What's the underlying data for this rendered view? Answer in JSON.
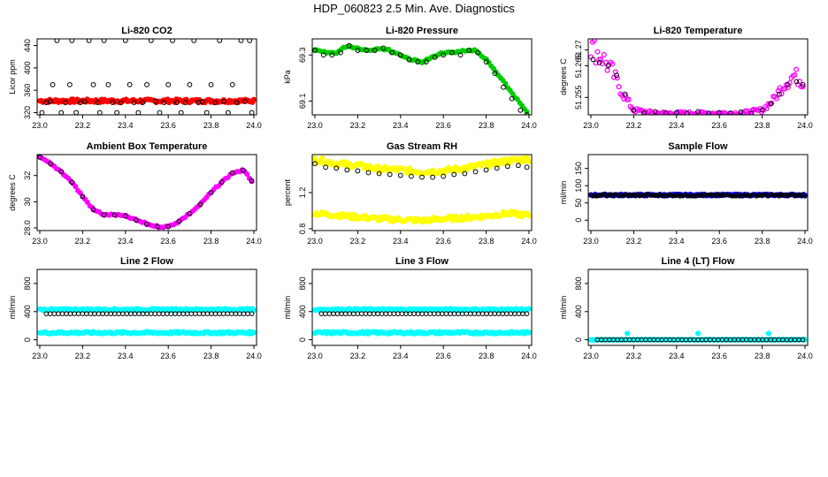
{
  "page": {
    "title": "HDP_060823  2.5 Min. Ave. Diagnostics"
  },
  "colors": {
    "black": "#000000",
    "red": "#ff0000",
    "green": "#00cc00",
    "magenta": "#ff00ff",
    "yellow": "#ffff00",
    "blue": "#0000ff",
    "cyan": "#00ffff"
  },
  "chart_data": [
    {
      "id": "co2",
      "type": "scatter",
      "title": "Li-820 CO2",
      "xlabel": "",
      "ylabel": "Licor ppm",
      "xlim": [
        23.0,
        24.0
      ],
      "ylim": [
        316,
        452
      ],
      "xticks": [
        23.0,
        23.2,
        23.4,
        23.6,
        23.8,
        24.0
      ],
      "yticks": [
        320,
        360,
        400,
        440
      ],
      "series": [
        {
          "color": "red",
          "style": "band",
          "x": [
            23.0,
            24.0
          ],
          "y": [
            341,
            341
          ],
          "spread": 3
        },
        {
          "color": "black",
          "style": "open",
          "x": [
            23.01,
            23.03,
            23.05,
            23.06,
            23.08,
            23.1,
            23.12,
            23.14,
            23.15,
            23.17,
            23.19,
            23.21,
            23.23,
            23.25,
            23.27,
            23.28,
            23.3,
            23.32,
            23.34,
            23.36,
            23.38,
            23.4,
            23.42,
            23.44,
            23.46,
            23.48,
            23.5,
            23.52,
            23.54,
            23.56,
            23.58,
            23.6,
            23.62,
            23.64,
            23.66,
            23.68,
            23.7,
            23.72,
            23.74,
            23.76,
            23.78,
            23.8,
            23.82,
            23.84,
            23.86,
            23.88,
            23.9,
            23.92,
            23.94,
            23.96,
            23.98,
            23.99
          ],
          "y": [
            320,
            338,
            340,
            370,
            449,
            320,
            338,
            370,
            449,
            320,
            338,
            340,
            449,
            370,
            338,
            320,
            449,
            370,
            338,
            320,
            338,
            449,
            370,
            338,
            320,
            338,
            370,
            449,
            340,
            320,
            338,
            370,
            449,
            338,
            320,
            338,
            370,
            449,
            338,
            340,
            320,
            370,
            338,
            449,
            340,
            320,
            370,
            338,
            449,
            340,
            449,
            320
          ]
        }
      ]
    },
    {
      "id": "pressure",
      "type": "scatter",
      "title": "Li-820 Pressure",
      "xlabel": "",
      "ylabel": "kPa",
      "xlim": [
        23.0,
        24.0
      ],
      "ylim": [
        69.04,
        69.37
      ],
      "xticks": [
        23.0,
        23.2,
        23.4,
        23.6,
        23.8,
        24.0
      ],
      "yticks": [
        69.1,
        69.3
      ],
      "series": [
        {
          "color": "green",
          "style": "line-dense",
          "x": [
            23.0,
            23.05,
            23.1,
            23.15,
            23.2,
            23.25,
            23.3,
            23.35,
            23.4,
            23.45,
            23.5,
            23.55,
            23.6,
            23.65,
            23.7,
            23.75,
            23.8,
            23.85,
            23.9,
            23.95,
            23.99
          ],
          "y": [
            69.32,
            69.31,
            69.31,
            69.34,
            69.33,
            69.32,
            69.33,
            69.32,
            69.3,
            69.28,
            69.27,
            69.29,
            69.31,
            69.31,
            69.32,
            69.32,
            69.28,
            69.22,
            69.16,
            69.1,
            69.05
          ]
        },
        {
          "color": "black",
          "style": "open",
          "x": [
            23.0,
            23.04,
            23.08,
            23.12,
            23.16,
            23.2,
            23.24,
            23.28,
            23.32,
            23.36,
            23.4,
            23.44,
            23.48,
            23.52,
            23.56,
            23.6,
            23.64,
            23.68,
            23.72,
            23.76,
            23.8,
            23.84,
            23.88,
            23.92,
            23.96,
            23.99
          ],
          "y": [
            69.32,
            69.3,
            69.3,
            69.31,
            69.34,
            69.32,
            69.32,
            69.32,
            69.33,
            69.31,
            69.3,
            69.28,
            69.27,
            69.27,
            69.29,
            69.3,
            69.31,
            69.3,
            69.32,
            69.31,
            69.27,
            69.22,
            69.16,
            69.11,
            69.06,
            69.04
          ]
        }
      ]
    },
    {
      "id": "temp",
      "type": "scatter",
      "title": "Li-820 Temperature",
      "xlabel": "",
      "ylabel": "degrees C",
      "xlim": [
        23.0,
        24.0
      ],
      "ylim": [
        51.2495,
        51.2735
      ],
      "xticks": [
        23.0,
        23.2,
        23.4,
        23.6,
        23.8,
        24.0
      ],
      "yticks": [
        51.255,
        51.265,
        51.27
      ],
      "series": [
        {
          "color": "magenta",
          "style": "noisy",
          "x": [
            23.0,
            23.05,
            23.1,
            23.15,
            23.2,
            23.3,
            23.4,
            23.5,
            23.6,
            23.7,
            23.8,
            23.85,
            23.9,
            23.95,
            23.99
          ],
          "y": [
            51.271,
            51.268,
            51.263,
            51.256,
            51.251,
            51.25,
            51.25,
            51.25,
            51.25,
            51.25,
            51.251,
            51.254,
            51.259,
            51.262,
            51.26
          ]
        },
        {
          "color": "black",
          "style": "open",
          "x": [
            23.01,
            23.04,
            23.08,
            23.12,
            23.16,
            23.2,
            23.25,
            23.3,
            23.35,
            23.4,
            23.45,
            23.5,
            23.55,
            23.6,
            23.65,
            23.7,
            23.75,
            23.8,
            23.84,
            23.88,
            23.92,
            23.96,
            23.99
          ],
          "y": [
            51.267,
            51.266,
            51.265,
            51.262,
            51.256,
            51.251,
            51.25,
            51.2505,
            51.25,
            51.2502,
            51.25,
            51.2505,
            51.25,
            51.2502,
            51.25,
            51.2504,
            51.25,
            51.251,
            51.253,
            51.256,
            51.259,
            51.26,
            51.259
          ]
        }
      ]
    },
    {
      "id": "ambient",
      "type": "scatter",
      "title": "Ambient Box Temperature",
      "xlabel": "",
      "ylabel": "degrees C",
      "xlim": [
        23.0,
        24.0
      ],
      "ylim": [
        27.8,
        33.6
      ],
      "xticks": [
        23.0,
        23.2,
        23.4,
        23.6,
        23.8,
        24.0
      ],
      "yticks": [
        28,
        30,
        32
      ],
      "series": [
        {
          "color": "magenta",
          "style": "line-dense",
          "x": [
            23.0,
            23.05,
            23.1,
            23.15,
            23.2,
            23.25,
            23.3,
            23.35,
            23.4,
            23.45,
            23.5,
            23.55,
            23.6,
            23.65,
            23.7,
            23.75,
            23.8,
            23.85,
            23.9,
            23.95,
            23.99
          ],
          "y": [
            33.4,
            32.9,
            32.3,
            31.5,
            30.4,
            29.4,
            29.0,
            29.0,
            28.9,
            28.6,
            28.3,
            28.1,
            28.1,
            28.5,
            29.1,
            29.8,
            30.7,
            31.5,
            32.2,
            32.4,
            31.6
          ]
        },
        {
          "color": "black",
          "style": "open",
          "x": [
            23.0,
            23.05,
            23.1,
            23.15,
            23.2,
            23.25,
            23.3,
            23.35,
            23.4,
            23.45,
            23.5,
            23.55,
            23.6,
            23.65,
            23.7,
            23.75,
            23.8,
            23.85,
            23.9,
            23.95,
            23.99
          ],
          "y": [
            33.4,
            32.9,
            32.3,
            31.5,
            30.4,
            29.4,
            29.0,
            29.0,
            28.9,
            28.6,
            28.3,
            28.1,
            28.1,
            28.5,
            29.1,
            29.8,
            30.7,
            31.5,
            32.2,
            32.4,
            31.6
          ]
        }
      ]
    },
    {
      "id": "rh",
      "type": "scatter",
      "title": "Gas Stream RH",
      "xlabel": "",
      "ylabel": "percent",
      "xlim": [
        23.0,
        24.0
      ],
      "ylim": [
        0.78,
        1.62
      ],
      "xticks": [
        23.0,
        23.2,
        23.4,
        23.6,
        23.8,
        24.0
      ],
      "yticks": [
        0.8,
        1.2
      ],
      "series": [
        {
          "color": "yellow",
          "style": "band",
          "x": [
            23.0,
            23.1,
            23.2,
            23.3,
            23.4,
            23.5,
            23.6,
            23.7,
            23.8,
            23.9,
            23.99
          ],
          "y": [
            1.57,
            1.52,
            1.5,
            1.46,
            1.45,
            1.43,
            1.44,
            1.47,
            1.51,
            1.55,
            1.57
          ],
          "spread": 0.03
        },
        {
          "color": "yellow",
          "style": "band",
          "x": [
            23.0,
            23.1,
            23.2,
            23.3,
            23.4,
            23.5,
            23.6,
            23.7,
            23.8,
            23.9,
            23.99
          ],
          "y": [
            0.97,
            0.95,
            0.93,
            0.91,
            0.9,
            0.89,
            0.91,
            0.92,
            0.94,
            0.97,
            0.95
          ],
          "spread": 0.025
        },
        {
          "color": "black",
          "style": "open",
          "x": [
            23.0,
            23.05,
            23.1,
            23.15,
            23.2,
            23.25,
            23.3,
            23.35,
            23.4,
            23.45,
            23.5,
            23.55,
            23.6,
            23.65,
            23.7,
            23.75,
            23.8,
            23.85,
            23.9,
            23.95,
            23.99
          ],
          "y": [
            1.52,
            1.48,
            1.47,
            1.45,
            1.44,
            1.42,
            1.41,
            1.4,
            1.39,
            1.38,
            1.37,
            1.37,
            1.38,
            1.4,
            1.41,
            1.43,
            1.45,
            1.47,
            1.49,
            1.5,
            1.48
          ]
        }
      ]
    },
    {
      "id": "sample",
      "type": "scatter",
      "title": "Sample Flow",
      "xlabel": "",
      "ylabel": "ml/min",
      "xlim": [
        23.0,
        24.0
      ],
      "ylim": [
        -30,
        190
      ],
      "xticks": [
        23.0,
        23.2,
        23.4,
        23.6,
        23.8,
        24.0
      ],
      "yticks": [
        0,
        50,
        100,
        150
      ],
      "series": [
        {
          "color": "blue",
          "style": "band",
          "x": [
            23.0,
            24.0
          ],
          "y": [
            73,
            73
          ],
          "spread": 2
        },
        {
          "color": "black",
          "style": "band-thin",
          "x": [
            23.0,
            24.0
          ],
          "y": [
            72,
            72
          ],
          "spread": 3
        }
      ]
    },
    {
      "id": "line2",
      "type": "scatter",
      "title": "Line 2 Flow",
      "xlabel": "",
      "ylabel": "ml/min",
      "xlim": [
        23.0,
        24.0
      ],
      "ylim": [
        -80,
        1000
      ],
      "xticks": [
        23.0,
        23.2,
        23.4,
        23.6,
        23.8,
        24.0
      ],
      "yticks": [
        0,
        400,
        800
      ],
      "series": [
        {
          "color": "cyan",
          "style": "band",
          "x": [
            23.0,
            24.0
          ],
          "y": [
            430,
            430
          ],
          "spread": 12
        },
        {
          "color": "cyan",
          "style": "band",
          "x": [
            23.0,
            24.0
          ],
          "y": [
            100,
            100
          ],
          "spread": 15
        },
        {
          "color": "black",
          "style": "open-row",
          "x": [
            23.03,
            23.99
          ],
          "y": [
            370,
            370
          ],
          "count": 52
        }
      ]
    },
    {
      "id": "line3",
      "type": "scatter",
      "title": "Line 3 Flow",
      "xlabel": "",
      "ylabel": "ml/min",
      "xlim": [
        23.0,
        24.0
      ],
      "ylim": [
        -80,
        1000
      ],
      "xticks": [
        23.0,
        23.2,
        23.4,
        23.6,
        23.8,
        24.0
      ],
      "yticks": [
        0,
        400,
        800
      ],
      "series": [
        {
          "color": "cyan",
          "style": "band",
          "x": [
            23.0,
            24.0
          ],
          "y": [
            430,
            430
          ],
          "spread": 12
        },
        {
          "color": "cyan",
          "style": "band",
          "x": [
            23.0,
            24.0
          ],
          "y": [
            100,
            100
          ],
          "spread": 15
        },
        {
          "color": "black",
          "style": "open-row",
          "x": [
            23.03,
            23.99
          ],
          "y": [
            370,
            370
          ],
          "count": 52
        }
      ]
    },
    {
      "id": "line4",
      "type": "scatter",
      "title": "Line 4 (LT) Flow",
      "xlabel": "",
      "ylabel": "ml/min",
      "xlim": [
        23.0,
        24.0
      ],
      "ylim": [
        -80,
        1000
      ],
      "xticks": [
        23.0,
        23.2,
        23.4,
        23.6,
        23.8,
        24.0
      ],
      "yticks": [
        0,
        400,
        800
      ],
      "series": [
        {
          "color": "cyan",
          "style": "band",
          "x": [
            23.0,
            24.0
          ],
          "y": [
            0,
            0
          ],
          "spread": 3
        },
        {
          "color": "cyan",
          "style": "filled",
          "x": [
            23.17,
            23.5,
            23.83
          ],
          "y": [
            90,
            90,
            90
          ]
        },
        {
          "color": "black",
          "style": "open-row",
          "x": [
            23.03,
            23.99
          ],
          "y": [
            0,
            0
          ],
          "count": 52
        }
      ]
    }
  ]
}
